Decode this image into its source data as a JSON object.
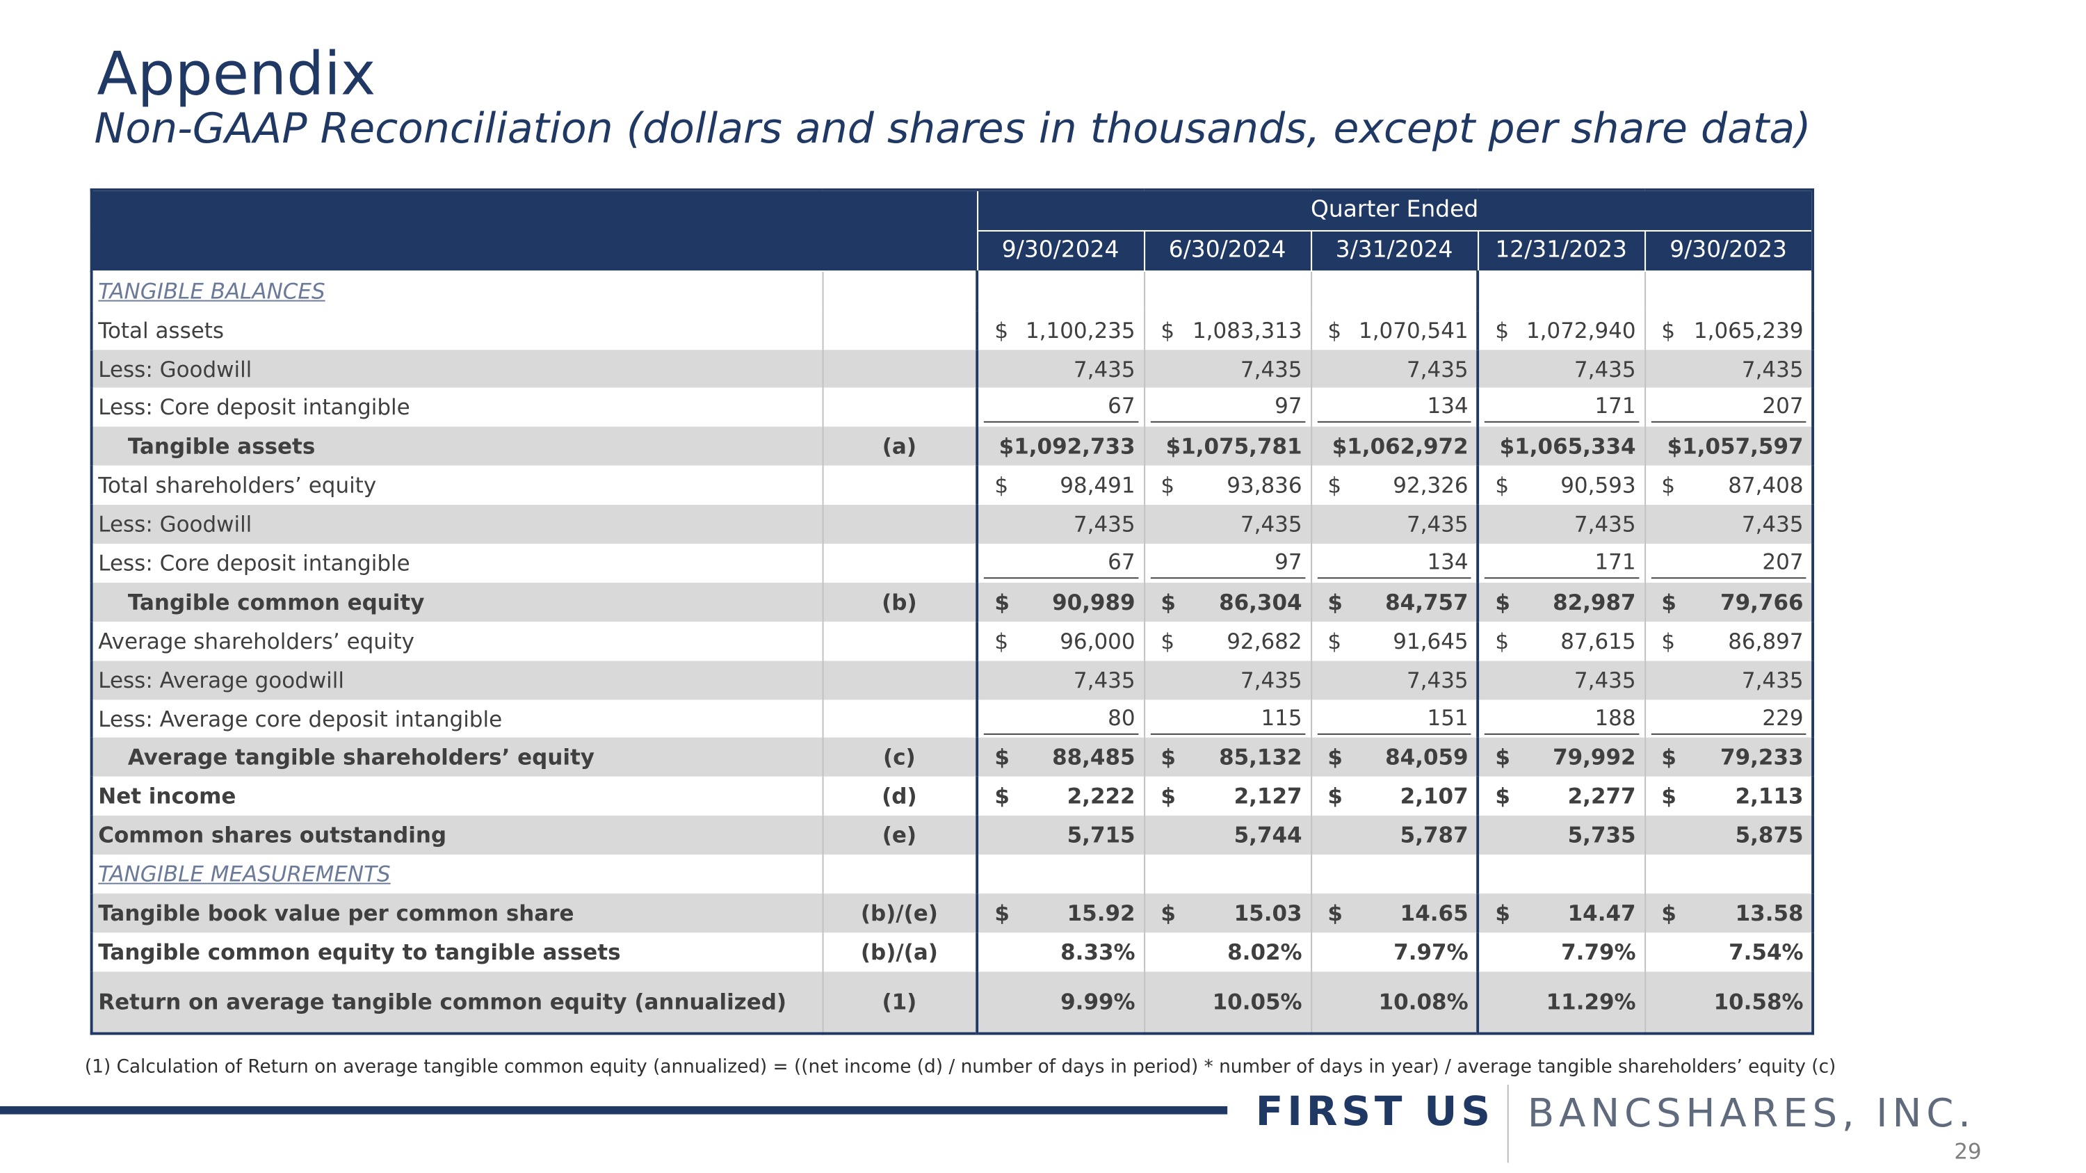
{
  "header": {
    "title": "Appendix",
    "subtitle": "Non-GAAP Reconciliation (dollars and shares in thousands, except per share data)"
  },
  "table": {
    "group_header": "Quarter Ended",
    "columns": [
      "9/30/2024",
      "6/30/2024",
      "3/31/2024",
      "12/31/2023",
      "9/30/2023"
    ],
    "rows": [
      {
        "label": "TANGIBLE BALANCES",
        "style": "section"
      },
      {
        "label": "Total assets",
        "cells": [
          [
            "$",
            "1,100,235"
          ],
          [
            "$",
            "1,083,313"
          ],
          [
            "$",
            "1,070,541"
          ],
          [
            "$",
            "1,072,940"
          ],
          [
            "$",
            "1,065,239"
          ]
        ]
      },
      {
        "label": "Less: Goodwill",
        "cells": [
          [
            "7,435"
          ],
          [
            "7,435"
          ],
          [
            "7,435"
          ],
          [
            "7,435"
          ],
          [
            "7,435"
          ]
        ]
      },
      {
        "label": "Less: Core deposit intangible",
        "rule": true,
        "cells": [
          [
            "67"
          ],
          [
            "97"
          ],
          [
            "134"
          ],
          [
            "171"
          ],
          [
            "207"
          ]
        ]
      },
      {
        "label": "Tangible assets",
        "ref": "(a)",
        "style": "bold-indent",
        "cells": [
          [
            "$1,092,733"
          ],
          [
            "$1,075,781"
          ],
          [
            "$1,062,972"
          ],
          [
            "$1,065,334"
          ],
          [
            "$1,057,597"
          ]
        ]
      },
      {
        "label": "Total shareholders’ equity",
        "cells": [
          [
            "$",
            "98,491"
          ],
          [
            "$",
            "93,836"
          ],
          [
            "$",
            "92,326"
          ],
          [
            "$",
            "90,593"
          ],
          [
            "$",
            "87,408"
          ]
        ]
      },
      {
        "label": "Less: Goodwill",
        "cells": [
          [
            "7,435"
          ],
          [
            "7,435"
          ],
          [
            "7,435"
          ],
          [
            "7,435"
          ],
          [
            "7,435"
          ]
        ]
      },
      {
        "label": "Less: Core deposit intangible",
        "rule": true,
        "cells": [
          [
            "67"
          ],
          [
            "97"
          ],
          [
            "134"
          ],
          [
            "171"
          ],
          [
            "207"
          ]
        ]
      },
      {
        "label": "Tangible common equity",
        "ref": "(b)",
        "style": "bold-indent",
        "cells": [
          [
            "$",
            "90,989"
          ],
          [
            "$",
            "86,304"
          ],
          [
            "$",
            "84,757"
          ],
          [
            "$",
            "82,987"
          ],
          [
            "$",
            "79,766"
          ]
        ]
      },
      {
        "label": "Average shareholders’ equity",
        "cells": [
          [
            "$",
            "96,000"
          ],
          [
            "$",
            "92,682"
          ],
          [
            "$",
            "91,645"
          ],
          [
            "$",
            "87,615"
          ],
          [
            "$",
            "86,897"
          ]
        ]
      },
      {
        "label": "Less: Average goodwill",
        "cells": [
          [
            "7,435"
          ],
          [
            "7,435"
          ],
          [
            "7,435"
          ],
          [
            "7,435"
          ],
          [
            "7,435"
          ]
        ]
      },
      {
        "label": "Less: Average core deposit intangible",
        "rule": true,
        "cells": [
          [
            "80"
          ],
          [
            "115"
          ],
          [
            "151"
          ],
          [
            "188"
          ],
          [
            "229"
          ]
        ]
      },
      {
        "label": "Average tangible shareholders’ equity",
        "ref": "(c)",
        "style": "bold-indent",
        "cells": [
          [
            "$",
            "88,485"
          ],
          [
            "$",
            "85,132"
          ],
          [
            "$",
            "84,059"
          ],
          [
            "$",
            "79,992"
          ],
          [
            "$",
            "79,233"
          ]
        ]
      },
      {
        "label": "Net income",
        "ref": "(d)",
        "style": "bold",
        "cells": [
          [
            "$",
            "2,222"
          ],
          [
            "$",
            "2,127"
          ],
          [
            "$",
            "2,107"
          ],
          [
            "$",
            "2,277"
          ],
          [
            "$",
            "2,113"
          ]
        ]
      },
      {
        "label": "Common shares outstanding",
        "ref": "(e)",
        "style": "bold",
        "cells": [
          [
            "5,715"
          ],
          [
            "5,744"
          ],
          [
            "5,787"
          ],
          [
            "5,735"
          ],
          [
            "5,875"
          ]
        ]
      },
      {
        "label": "TANGIBLE MEASUREMENTS",
        "style": "section"
      },
      {
        "label": "Tangible book value per common share",
        "ref": "(b)/(e)",
        "style": "bold",
        "cells": [
          [
            "$",
            "15.92"
          ],
          [
            "$",
            "15.03"
          ],
          [
            "$",
            "14.65"
          ],
          [
            "$",
            "14.47"
          ],
          [
            "$",
            "13.58"
          ]
        ]
      },
      {
        "label": "Tangible common equity to tangible assets",
        "ref": "(b)/(a)",
        "style": "bold",
        "cells": [
          [
            "8.33%"
          ],
          [
            "8.02%"
          ],
          [
            "7.97%"
          ],
          [
            "7.79%"
          ],
          [
            "7.54%"
          ]
        ]
      },
      {
        "label": "Return on average tangible common equity (annualized)",
        "ref": "(1)",
        "style": "bold",
        "cells": [
          [
            "9.99%"
          ],
          [
            "10.05%"
          ],
          [
            "10.08%"
          ],
          [
            "11.29%"
          ],
          [
            "10.58%"
          ]
        ]
      }
    ]
  },
  "footnote": "(1) Calculation of Return on average tangible common equity (annualized) = ((net income (d) / number of days in period) * number of days in year) / average tangible shareholders’ equity (c)",
  "footer": {
    "brand_bold": "FIRST US",
    "brand_light": "BANCSHARES, INC.",
    "page_number": "29"
  }
}
